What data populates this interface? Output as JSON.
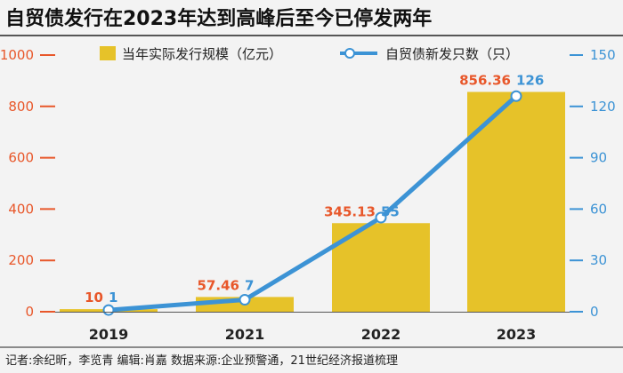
{
  "chart_data": {
    "type": "bar+line",
    "title": "自贸债发行在2023年达到高峰后至今已停发两年",
    "categories": [
      "2019",
      "2021",
      "2022",
      "2023"
    ],
    "series": [
      {
        "name": "当年实际发行规模（亿元）",
        "type": "bar",
        "axis": "left",
        "values": [
          10,
          57.46,
          345.13,
          856.36
        ],
        "value_labels": [
          "10",
          "57.46",
          "345.13",
          "856.36"
        ]
      },
      {
        "name": "自贸债新发只数（只）",
        "type": "line",
        "axis": "right",
        "values": [
          1,
          7,
          55,
          126
        ],
        "value_labels": [
          "1",
          "7",
          "55",
          "126"
        ]
      }
    ],
    "y_left": {
      "range": [
        0,
        1000
      ],
      "ticks": [
        0,
        200,
        400,
        600,
        800,
        1000
      ],
      "tick_labels": [
        "0",
        "200",
        "400",
        "600",
        "800",
        "1000"
      ]
    },
    "y_right": {
      "range": [
        0,
        150
      ],
      "ticks": [
        0,
        30,
        60,
        90,
        120,
        150
      ],
      "tick_labels": [
        "0",
        "30",
        "60",
        "90",
        "120",
        "150"
      ]
    },
    "legend": {
      "placement": "top",
      "bar_label": "当年实际发行规模（亿元）",
      "line_label": "自贸债新发只数（只）"
    },
    "grid": false,
    "footer": "记者:余纪昕，李览青  编辑:肖嘉  数据来源:企业预警通，21世纪经济报道梳理"
  },
  "colors": {
    "background": "#f3f3f3",
    "bar": "#e6c229",
    "line": "#3c93d5",
    "left_axis": "#e8572a",
    "right_axis": "#3c93d5",
    "title": "#111111",
    "text": "#222222"
  }
}
